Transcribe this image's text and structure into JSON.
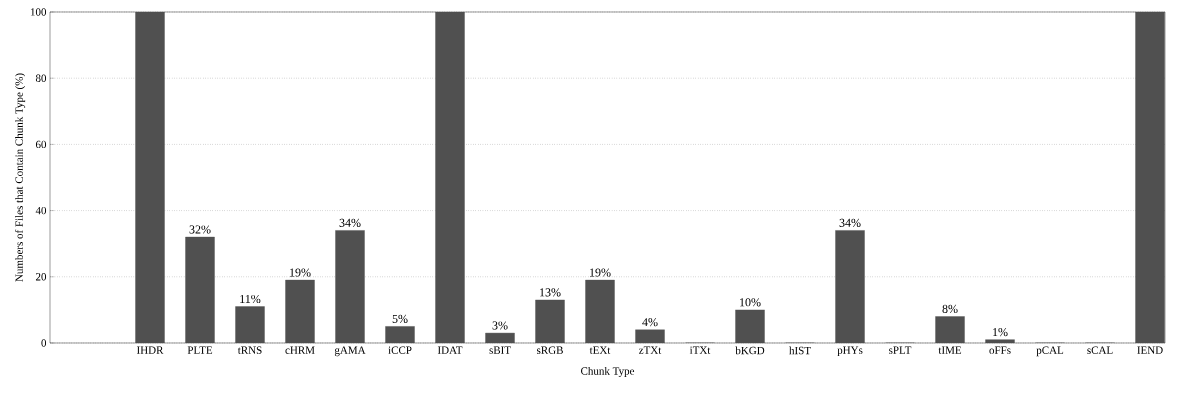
{
  "chart_data": {
    "type": "bar",
    "xlabel": "Chunk Type",
    "ylabel": "Numbers of Files that Contain Chunk Type (%)",
    "categories": [
      "IHDR",
      "PLTE",
      "tRNS",
      "cHRM",
      "gAMA",
      "iCCP",
      "IDAT",
      "sBIT",
      "sRGB",
      "tEXt",
      "zTXt",
      "iTXt",
      "bKGD",
      "hIST",
      "pHYs",
      "sPLT",
      "tIME",
      "oFFs",
      "pCAL",
      "sCAL",
      "IEND"
    ],
    "values": [
      100,
      32,
      11,
      19,
      34,
      5,
      100,
      3,
      13,
      19,
      4,
      0,
      10,
      0,
      34,
      0,
      8,
      1,
      0,
      0,
      100
    ],
    "value_labels": [
      null,
      "32%",
      "11%",
      "19%",
      "34%",
      "5%",
      null,
      "3%",
      "13%",
      "19%",
      "4%",
      null,
      "10%",
      null,
      "34%",
      null,
      "8%",
      "1%",
      null,
      null,
      null
    ],
    "color": "#505050",
    "ylim": [
      0,
      100
    ],
    "yticks": [
      0,
      20,
      40,
      60,
      80,
      100
    ],
    "grid": "y"
  }
}
